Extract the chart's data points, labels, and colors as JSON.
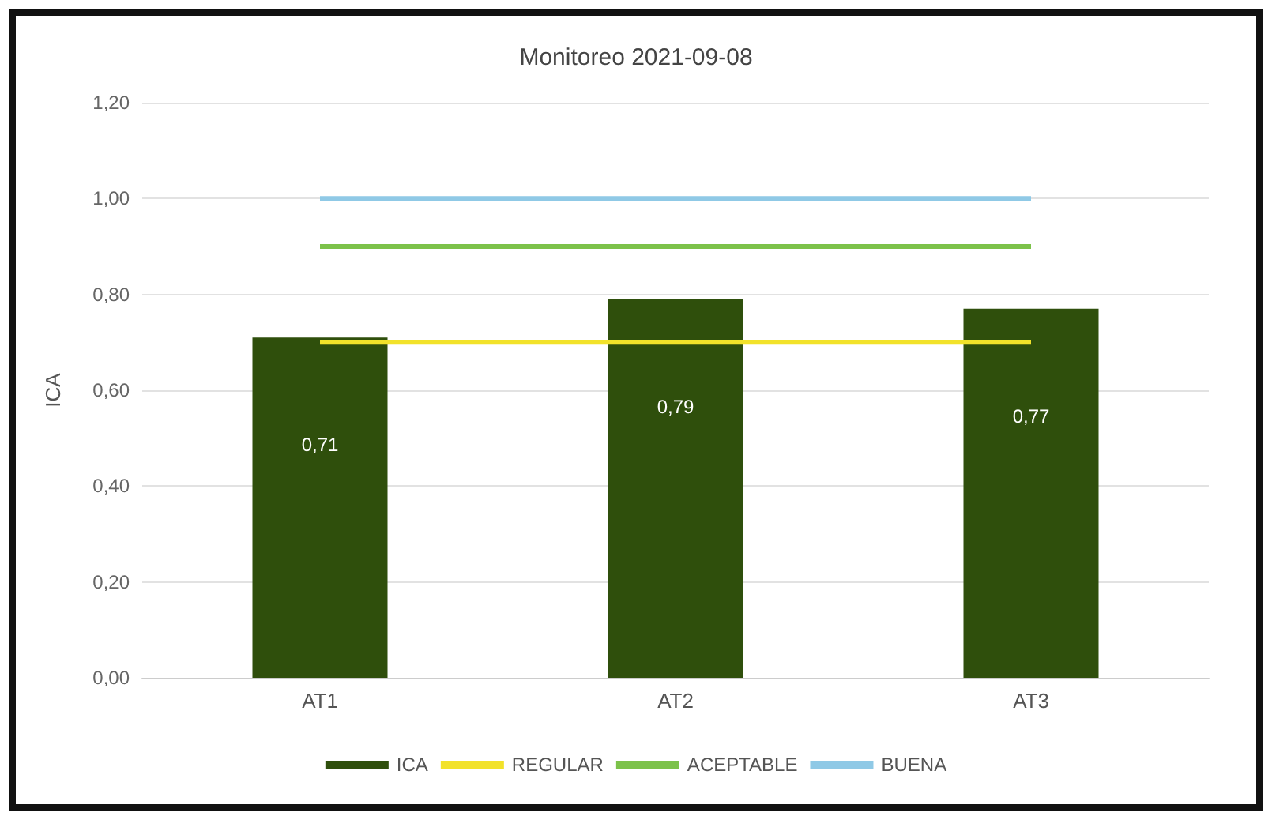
{
  "chart_data": {
    "type": "bar",
    "title": "Monitoreo 2021-09-08",
    "ylabel": "ICA",
    "categories": [
      "AT1",
      "AT2",
      "AT3"
    ],
    "series": [
      {
        "name": "ICA",
        "color": "#2f4f0c",
        "values": [
          0.71,
          0.79,
          0.77
        ],
        "value_labels": [
          "0,71",
          "0,79",
          "0,77"
        ]
      },
      {
        "name": "REGULAR",
        "type": "line",
        "color": "#f2e22a",
        "values": [
          0.7,
          0.7,
          0.7
        ]
      },
      {
        "name": "ACEPTABLE",
        "type": "line",
        "color": "#7cc24a",
        "values": [
          0.9,
          0.9,
          0.9
        ]
      },
      {
        "name": "BUENA",
        "type": "line",
        "color": "#8fc9e6",
        "values": [
          1.0,
          1.0,
          1.0
        ]
      }
    ],
    "ylim": [
      0,
      1.2
    ],
    "yticks": [
      {
        "value": 0,
        "label": "0,00"
      },
      {
        "value": 0.2,
        "label": "0,20"
      },
      {
        "value": 0.4,
        "label": "0,40"
      },
      {
        "value": 0.6,
        "label": "0,60"
      },
      {
        "value": 0.8,
        "label": "0,80"
      },
      {
        "value": 1.0,
        "label": "1,00"
      },
      {
        "value": 1.2,
        "label": "1,20"
      }
    ],
    "grid": "y",
    "legend": "bottom",
    "marker": "none"
  }
}
